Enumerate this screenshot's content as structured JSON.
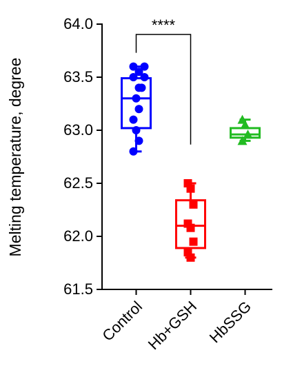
{
  "chart_data": {
    "type": "box",
    "y_label": "Melting temperature, degree",
    "annotation": "****",
    "categories": [
      "Control",
      "Hb+GSH",
      "HbSSG"
    ],
    "boxes": [
      {
        "color": "#0000ff",
        "marker": "circle",
        "min": 62.8,
        "q1": 63.02,
        "median": 63.3,
        "q3": 63.49,
        "max": 63.6,
        "points": [
          63.6,
          63.6,
          63.55,
          63.5,
          63.5,
          63.4,
          63.4,
          63.3,
          63.2,
          63.1,
          63.0,
          62.9,
          62.8
        ]
      },
      {
        "color": "#ff0000",
        "marker": "square",
        "min": 61.8,
        "q1": 61.89,
        "median": 62.1,
        "q3": 62.34,
        "max": 62.5,
        "points": [
          62.5,
          62.45,
          62.3,
          62.12,
          62.08,
          61.95,
          61.85,
          61.8
        ]
      },
      {
        "color": "#22bb22",
        "marker": "triangle",
        "min": 62.9,
        "q1": 62.93,
        "median": 62.96,
        "q3": 63.02,
        "max": 63.1,
        "points": [
          63.1,
          63.05,
          62.96,
          62.9
        ]
      }
    ],
    "ylim": [
      61.5,
      64.0
    ],
    "yticks": [
      {
        "value": 61.5,
        "label": "61.5"
      },
      {
        "value": 62.0,
        "label": "62.0"
      },
      {
        "value": 62.5,
        "label": "62.5"
      },
      {
        "value": 63.0,
        "label": "63.0"
      },
      {
        "value": 63.5,
        "label": "63.5"
      },
      {
        "value": 64.0,
        "label": "64.0"
      }
    ]
  }
}
